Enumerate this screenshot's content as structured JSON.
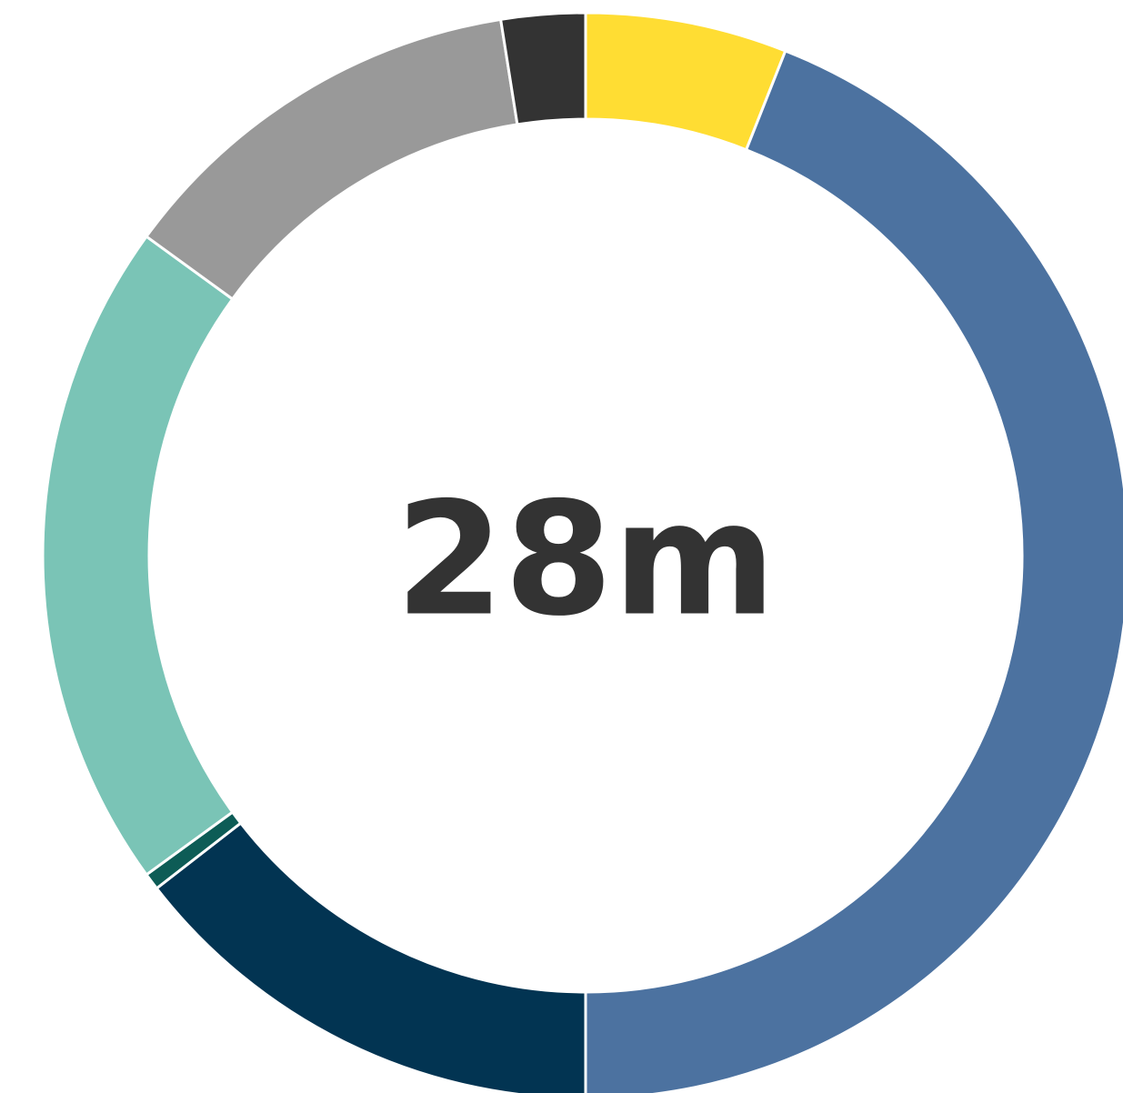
{
  "chart_data": {
    "type": "pie",
    "variant": "donut",
    "center_label": "28m",
    "slices": [
      {
        "value": 6.0,
        "color": "#FFDD33"
      },
      {
        "value": 44.0,
        "color": "#4C72A0"
      },
      {
        "value": 14.5,
        "color": "#023452"
      },
      {
        "value": 0.5,
        "color": "#0D5C56"
      },
      {
        "value": 20.0,
        "color": "#7AC4B6"
      },
      {
        "value": 12.5,
        "color": "#999999"
      },
      {
        "value": 2.5,
        "color": "#333333"
      }
    ],
    "legend": "none",
    "colors": {
      "label": "#333333",
      "separator": "#FFFFFF"
    }
  }
}
